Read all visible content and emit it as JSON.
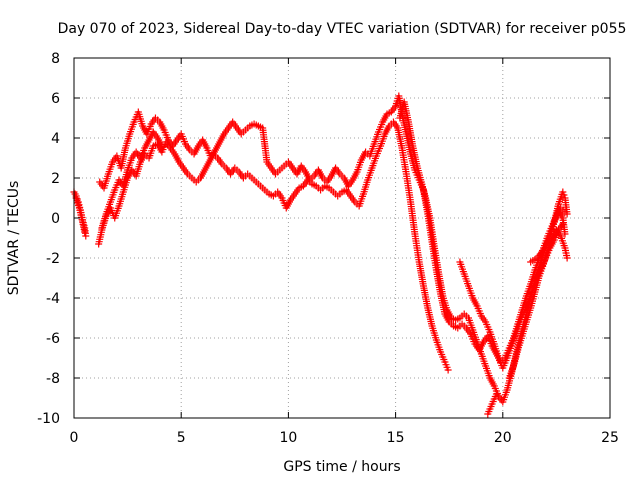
{
  "chart_data": {
    "type": "scatter",
    "title": "Day 070 of 2023, Sidereal Day-to-day VTEC variation (SDTVAR) for receiver p055",
    "xlabel": "GPS time / hours",
    "ylabel": "SDTVAR / TECUs",
    "xlim": [
      0,
      25
    ],
    "ylim": [
      -10,
      8
    ],
    "xticks": [
      0,
      5,
      10,
      15,
      20,
      25
    ],
    "yticks": [
      -10,
      -8,
      -6,
      -4,
      -2,
      0,
      2,
      4,
      6,
      8
    ],
    "xtick_labels": [
      "0",
      "5",
      "10",
      "15",
      "20",
      "25"
    ],
    "ytick_labels": [
      "-10",
      "-8",
      "-6",
      "-4",
      "-2",
      "0",
      "2",
      "4",
      "6",
      "8"
    ],
    "grid": true,
    "marker": "+",
    "color": "#ff0000",
    "series": [
      {
        "points": [
          [
            0.0,
            1.3
          ],
          [
            0.1,
            1.1
          ],
          [
            0.2,
            0.8
          ],
          [
            0.3,
            0.4
          ],
          [
            0.4,
            -0.1
          ],
          [
            0.5,
            -0.5
          ],
          [
            0.55,
            -0.9
          ],
          [
            1.15,
            -1.3
          ],
          [
            1.3,
            -0.6
          ],
          [
            1.5,
            0.1
          ],
          [
            1.7,
            0.5
          ],
          [
            1.9,
            0.0
          ],
          [
            2.1,
            0.6
          ],
          [
            2.3,
            1.3
          ],
          [
            2.5,
            2.0
          ],
          [
            2.7,
            2.4
          ],
          [
            2.9,
            2.1
          ],
          [
            3.1,
            2.8
          ],
          [
            3.3,
            3.2
          ],
          [
            3.5,
            3.0
          ],
          [
            3.7,
            3.6
          ],
          [
            3.9,
            3.7
          ],
          [
            4.1,
            3.3
          ],
          [
            4.3,
            3.8
          ],
          [
            4.5,
            3.5
          ],
          [
            4.7,
            3.2
          ],
          [
            4.9,
            2.8
          ],
          [
            5.1,
            2.5
          ],
          [
            5.3,
            2.2
          ],
          [
            5.5,
            2.0
          ],
          [
            5.7,
            1.8
          ],
          [
            5.9,
            2.0
          ],
          [
            6.1,
            2.4
          ],
          [
            6.3,
            2.8
          ],
          [
            6.5,
            3.2
          ],
          [
            6.7,
            3.0
          ],
          [
            6.9,
            2.7
          ],
          [
            7.1,
            2.5
          ],
          [
            7.3,
            2.2
          ],
          [
            7.5,
            2.5
          ],
          [
            7.7,
            2.3
          ],
          [
            7.9,
            2.0
          ],
          [
            8.1,
            2.2
          ],
          [
            8.3,
            2.0
          ],
          [
            8.5,
            1.8
          ],
          [
            8.7,
            1.6
          ],
          [
            8.9,
            1.4
          ],
          [
            9.1,
            1.2
          ],
          [
            9.3,
            1.1
          ],
          [
            9.5,
            1.3
          ],
          [
            9.7,
            1.0
          ],
          [
            9.9,
            0.5
          ],
          [
            10.1,
            0.9
          ],
          [
            10.3,
            1.2
          ],
          [
            10.5,
            1.5
          ],
          [
            10.7,
            1.6
          ],
          [
            10.9,
            1.9
          ],
          [
            11.1,
            1.7
          ],
          [
            11.3,
            1.6
          ],
          [
            11.5,
            1.4
          ],
          [
            11.7,
            1.6
          ],
          [
            11.9,
            1.5
          ],
          [
            12.1,
            1.3
          ],
          [
            12.3,
            1.1
          ],
          [
            12.5,
            1.3
          ],
          [
            12.7,
            1.4
          ],
          [
            12.9,
            1.1
          ],
          [
            13.1,
            0.8
          ],
          [
            13.3,
            0.6
          ],
          [
            13.5,
            1.2
          ],
          [
            13.7,
            1.9
          ],
          [
            13.9,
            2.5
          ],
          [
            14.1,
            3.1
          ],
          [
            14.3,
            3.6
          ],
          [
            14.5,
            4.2
          ],
          [
            14.7,
            4.6
          ],
          [
            14.9,
            4.8
          ],
          [
            15.1,
            4.5
          ],
          [
            15.3,
            3.5
          ],
          [
            15.5,
            2.2
          ],
          [
            15.7,
            0.8
          ],
          [
            15.9,
            -0.8
          ],
          [
            16.1,
            -2.2
          ],
          [
            16.3,
            -3.4
          ],
          [
            16.5,
            -4.5
          ],
          [
            16.7,
            -5.4
          ],
          [
            16.9,
            -6.1
          ],
          [
            17.1,
            -6.7
          ],
          [
            17.3,
            -7.2
          ],
          [
            17.45,
            -7.6
          ],
          [
            18.0,
            -2.2
          ],
          [
            18.2,
            -2.8
          ],
          [
            18.4,
            -3.4
          ],
          [
            18.6,
            -4.0
          ],
          [
            18.8,
            -4.4
          ],
          [
            19.0,
            -4.9
          ],
          [
            19.2,
            -5.2
          ],
          [
            19.4,
            -5.7
          ],
          [
            19.6,
            -6.3
          ],
          [
            19.8,
            -7.0
          ],
          [
            20.0,
            -7.5
          ],
          [
            20.2,
            -7.0
          ],
          [
            20.4,
            -6.4
          ],
          [
            20.6,
            -5.8
          ],
          [
            20.8,
            -5.2
          ],
          [
            21.0,
            -4.7
          ],
          [
            21.2,
            -4.2
          ],
          [
            21.4,
            -3.6
          ],
          [
            21.6,
            -3.0
          ],
          [
            21.8,
            -2.5
          ],
          [
            22.0,
            -2.0
          ],
          [
            22.2,
            -1.5
          ],
          [
            22.4,
            -1.1
          ],
          [
            22.6,
            -0.6
          ],
          [
            22.8,
            -0.3
          ]
        ]
      },
      {
        "points": [
          [
            0.1,
            1.0
          ],
          [
            0.25,
            0.5
          ],
          [
            0.4,
            -0.2
          ],
          [
            0.5,
            -0.7
          ],
          [
            1.2,
            1.8
          ],
          [
            1.4,
            1.5
          ],
          [
            1.6,
            2.2
          ],
          [
            1.8,
            2.8
          ],
          [
            2.0,
            3.1
          ],
          [
            2.2,
            2.5
          ],
          [
            2.4,
            3.5
          ],
          [
            2.6,
            4.2
          ],
          [
            2.8,
            4.8
          ],
          [
            3.0,
            5.3
          ],
          [
            3.2,
            4.6
          ],
          [
            3.4,
            4.2
          ],
          [
            3.6,
            4.7
          ],
          [
            3.8,
            5.0
          ],
          [
            4.0,
            4.8
          ],
          [
            4.2,
            4.4
          ],
          [
            4.4,
            3.9
          ],
          [
            4.6,
            3.6
          ],
          [
            4.8,
            3.9
          ],
          [
            5.0,
            4.2
          ],
          [
            5.2,
            3.7
          ],
          [
            5.4,
            3.4
          ],
          [
            5.6,
            3.2
          ],
          [
            5.8,
            3.6
          ],
          [
            6.0,
            3.9
          ],
          [
            6.2,
            3.5
          ],
          [
            6.4,
            3.0
          ],
          [
            6.6,
            3.4
          ],
          [
            6.8,
            3.8
          ],
          [
            7.0,
            4.2
          ],
          [
            7.2,
            4.5
          ],
          [
            7.4,
            4.8
          ],
          [
            7.6,
            4.5
          ],
          [
            7.8,
            4.2
          ],
          [
            8.0,
            4.4
          ],
          [
            8.2,
            4.6
          ],
          [
            8.4,
            4.7
          ],
          [
            8.6,
            4.6
          ],
          [
            8.8,
            4.5
          ],
          [
            9.0,
            2.8
          ],
          [
            9.2,
            2.5
          ],
          [
            9.4,
            2.2
          ],
          [
            9.6,
            2.4
          ],
          [
            9.8,
            2.6
          ],
          [
            10.0,
            2.8
          ],
          [
            10.2,
            2.5
          ],
          [
            10.4,
            2.2
          ],
          [
            10.6,
            2.6
          ],
          [
            10.8,
            2.3
          ],
          [
            11.0,
            1.9
          ],
          [
            11.2,
            2.1
          ],
          [
            11.4,
            2.4
          ],
          [
            11.6,
            2.0
          ],
          [
            11.8,
            1.8
          ],
          [
            12.0,
            2.1
          ],
          [
            12.2,
            2.5
          ],
          [
            12.4,
            2.2
          ],
          [
            12.6,
            2.0
          ],
          [
            12.8,
            1.6
          ],
          [
            13.0,
            1.9
          ],
          [
            13.2,
            2.3
          ],
          [
            13.4,
            2.9
          ],
          [
            13.6,
            3.3
          ],
          [
            13.8,
            3.1
          ],
          [
            14.0,
            3.7
          ],
          [
            14.2,
            4.3
          ],
          [
            14.4,
            4.8
          ],
          [
            14.6,
            5.2
          ],
          [
            14.8,
            5.3
          ],
          [
            15.0,
            5.6
          ],
          [
            15.15,
            6.1
          ],
          [
            15.3,
            5.2
          ],
          [
            15.5,
            4.2
          ],
          [
            15.7,
            3.2
          ],
          [
            15.9,
            2.4
          ],
          [
            16.1,
            1.9
          ],
          [
            16.3,
            1.4
          ],
          [
            16.5,
            0.2
          ],
          [
            16.7,
            -1.2
          ],
          [
            16.9,
            -2.6
          ],
          [
            17.1,
            -3.8
          ],
          [
            17.3,
            -4.8
          ],
          [
            17.5,
            -5.2
          ],
          [
            17.7,
            -5.4
          ],
          [
            17.9,
            -5.5
          ],
          [
            18.1,
            -5.3
          ],
          [
            18.3,
            -5.5
          ],
          [
            18.5,
            -5.8
          ],
          [
            18.7,
            -6.3
          ],
          [
            18.9,
            -6.6
          ],
          [
            19.1,
            -6.2
          ],
          [
            19.3,
            -5.9
          ],
          [
            19.5,
            -6.4
          ],
          [
            19.7,
            -6.8
          ],
          [
            19.9,
            -7.2
          ],
          [
            20.1,
            -7.0
          ],
          [
            20.3,
            -6.5
          ],
          [
            20.5,
            -6.0
          ],
          [
            20.7,
            -5.3
          ],
          [
            20.9,
            -4.6
          ],
          [
            21.1,
            -3.9
          ],
          [
            21.3,
            -3.3
          ],
          [
            21.5,
            -2.6
          ],
          [
            21.7,
            -2.0
          ],
          [
            21.9,
            -1.5
          ],
          [
            22.1,
            -0.9
          ],
          [
            22.3,
            -0.4
          ],
          [
            22.5,
            0.1
          ],
          [
            22.7,
            0.5
          ],
          [
            22.9,
            0.3
          ]
        ]
      },
      {
        "points": [
          [
            1.3,
            -0.5
          ],
          [
            1.5,
            0.2
          ],
          [
            1.7,
            0.8
          ],
          [
            1.9,
            1.4
          ],
          [
            2.1,
            1.9
          ],
          [
            2.3,
            1.6
          ],
          [
            2.5,
            2.4
          ],
          [
            2.7,
            3.0
          ],
          [
            2.9,
            3.3
          ],
          [
            3.1,
            3.0
          ],
          [
            3.3,
            3.5
          ],
          [
            3.5,
            3.9
          ],
          [
            3.7,
            4.3
          ],
          [
            3.9,
            4.0
          ],
          [
            4.1,
            3.6
          ],
          [
            15.2,
            5.0
          ],
          [
            15.4,
            5.8
          ],
          [
            15.6,
            4.8
          ],
          [
            15.8,
            3.6
          ],
          [
            16.0,
            2.6
          ],
          [
            16.2,
            1.8
          ],
          [
            16.4,
            1.0
          ],
          [
            16.6,
            0.0
          ],
          [
            16.8,
            -1.4
          ],
          [
            17.0,
            -2.7
          ],
          [
            17.2,
            -3.9
          ],
          [
            17.4,
            -4.6
          ],
          [
            17.6,
            -5.0
          ],
          [
            17.8,
            -5.1
          ],
          [
            18.0,
            -5.0
          ],
          [
            18.2,
            -4.8
          ],
          [
            18.4,
            -5.0
          ],
          [
            18.6,
            -5.6
          ],
          [
            18.8,
            -6.2
          ],
          [
            19.0,
            -6.8
          ],
          [
            19.2,
            -7.4
          ],
          [
            19.4,
            -8.0
          ],
          [
            19.6,
            -8.4
          ],
          [
            19.8,
            -8.9
          ],
          [
            20.0,
            -9.2
          ],
          [
            20.2,
            -8.6
          ],
          [
            20.4,
            -7.8
          ],
          [
            20.6,
            -6.9
          ],
          [
            20.8,
            -6.0
          ],
          [
            21.0,
            -5.2
          ],
          [
            21.2,
            -4.4
          ],
          [
            21.4,
            -3.6
          ],
          [
            21.6,
            -2.8
          ],
          [
            21.8,
            -2.1
          ],
          [
            22.0,
            -1.5
          ],
          [
            22.2,
            -0.9
          ],
          [
            22.4,
            -0.2
          ],
          [
            22.6,
            0.4
          ],
          [
            22.8,
            0.0
          ],
          [
            22.9,
            -0.8
          ],
          [
            19.3,
            -9.8
          ],
          [
            19.5,
            -9.3
          ],
          [
            19.7,
            -8.8
          ],
          [
            20.3,
            -8.0
          ],
          [
            20.5,
            -7.4
          ],
          [
            20.7,
            -6.6
          ],
          [
            20.9,
            -5.9
          ],
          [
            21.1,
            -5.2
          ],
          [
            21.3,
            -4.5
          ],
          [
            21.5,
            -3.7
          ],
          [
            21.7,
            -2.9
          ],
          [
            21.9,
            -2.3
          ],
          [
            22.1,
            -1.6
          ],
          [
            22.3,
            -1.0
          ],
          [
            22.5,
            -0.6
          ],
          [
            22.7,
            -0.9
          ],
          [
            22.9,
            -1.5
          ],
          [
            23.0,
            -2.0
          ]
        ]
      },
      {
        "points": [
          [
            21.3,
            -2.2
          ],
          [
            21.6,
            -2.0
          ],
          [
            21.9,
            -1.6
          ],
          [
            22.2,
            -0.9
          ],
          [
            22.4,
            -0.2
          ],
          [
            22.6,
            0.7
          ],
          [
            22.8,
            1.3
          ],
          [
            22.9,
            1.0
          ],
          [
            23.0,
            0.2
          ]
        ]
      }
    ]
  }
}
